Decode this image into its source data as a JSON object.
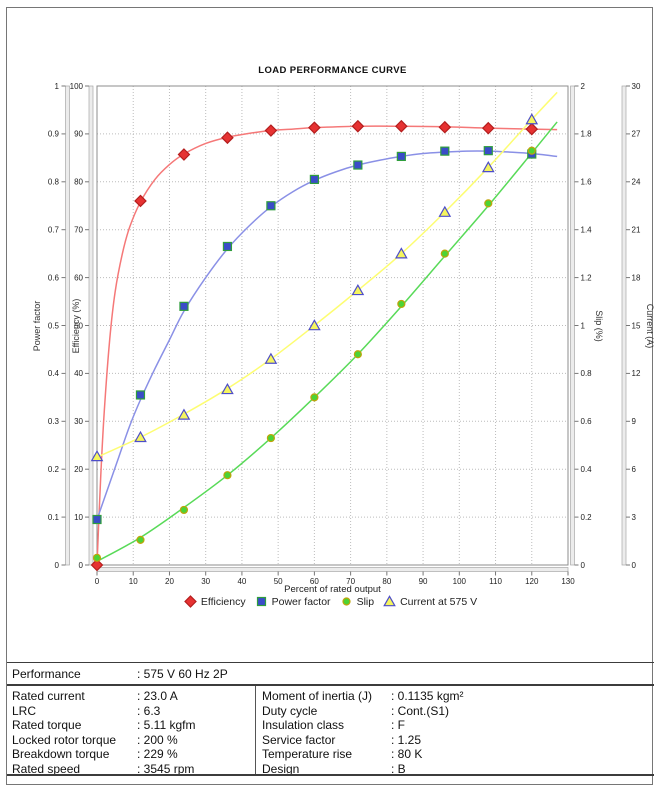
{
  "title": "LOAD PERFORMANCE CURVE",
  "chart_data": {
    "type": "line",
    "title": "LOAD PERFORMANCE CURVE",
    "xlabel": "Percent of rated output",
    "xlim": [
      0,
      130
    ],
    "x_tick_step": 10,
    "grid": "dotted",
    "legend_position": "bottom",
    "x": [
      0,
      12,
      24,
      36,
      48,
      60,
      72,
      84,
      96,
      108,
      120
    ],
    "axes": [
      {
        "id": "power_factor",
        "label": "Power factor",
        "side": "left",
        "min": 0,
        "max": 1,
        "step": 0.1
      },
      {
        "id": "efficiency",
        "label": "Efficiency (%)",
        "side": "left",
        "min": 0,
        "max": 100,
        "step": 10
      },
      {
        "id": "slip",
        "label": "Slip (%)",
        "side": "right",
        "min": 0,
        "max": 2,
        "step": 0.2
      },
      {
        "id": "current",
        "label": "Current (A)",
        "side": "right",
        "min": 0,
        "max": 30,
        "step": 3
      }
    ],
    "series": [
      {
        "name": "Efficiency",
        "axis": "efficiency",
        "marker": "diamond",
        "color": "#e63232",
        "edge_color": "#b41e1e",
        "line_color": "#f57878",
        "values": [
          0,
          76,
          85.7,
          89.2,
          90.7,
          91.3,
          91.6,
          91.6,
          91.4,
          91.2,
          91.0
        ],
        "curve": [
          [
            0,
            0
          ],
          [
            1,
            18
          ],
          [
            2,
            32
          ],
          [
            3.5,
            47
          ],
          [
            5,
            57
          ],
          [
            7,
            65
          ],
          [
            9,
            70.5
          ],
          [
            12,
            75.8
          ],
          [
            16,
            80.5
          ],
          [
            20,
            83.6
          ],
          [
            24,
            85.8
          ],
          [
            30,
            88
          ],
          [
            36,
            89.3
          ],
          [
            42,
            90.1
          ],
          [
            48,
            90.7
          ],
          [
            54,
            91.0
          ],
          [
            60,
            91.3
          ],
          [
            72,
            91.6
          ],
          [
            84,
            91.6
          ],
          [
            96,
            91.5
          ],
          [
            108,
            91.2
          ],
          [
            120,
            91.0
          ],
          [
            127,
            90.9
          ]
        ]
      },
      {
        "name": "Power factor",
        "axis": "power_factor",
        "marker": "square",
        "color": "#3a4cc8",
        "edge_color": "#2f9e3c",
        "line_color": "#8a90e6",
        "values": [
          0.095,
          0.355,
          0.54,
          0.665,
          0.75,
          0.805,
          0.835,
          0.853,
          0.864,
          0.865,
          0.858
        ],
        "curve": [
          [
            0,
            0.095
          ],
          [
            3,
            0.16
          ],
          [
            6,
            0.225
          ],
          [
            9,
            0.29
          ],
          [
            12,
            0.345
          ],
          [
            16,
            0.41
          ],
          [
            20,
            0.47
          ],
          [
            24,
            0.53
          ],
          [
            30,
            0.6
          ],
          [
            36,
            0.66
          ],
          [
            42,
            0.708
          ],
          [
            48,
            0.748
          ],
          [
            54,
            0.779
          ],
          [
            60,
            0.803
          ],
          [
            66,
            0.821
          ],
          [
            72,
            0.835
          ],
          [
            78,
            0.845
          ],
          [
            84,
            0.853
          ],
          [
            90,
            0.859
          ],
          [
            96,
            0.862
          ],
          [
            102,
            0.864
          ],
          [
            108,
            0.864
          ],
          [
            114,
            0.862
          ],
          [
            120,
            0.859
          ],
          [
            127,
            0.853
          ]
        ]
      },
      {
        "name": "Slip",
        "axis": "slip",
        "marker": "circle",
        "color": "#4cd335",
        "edge_color": "#bfa40a",
        "line_color": "#58da58",
        "values": [
          0.03,
          0.105,
          0.23,
          0.375,
          0.53,
          0.7,
          0.88,
          1.09,
          1.3,
          1.51,
          1.73
        ],
        "curve": [
          [
            0,
            0.015
          ],
          [
            12,
            0.115
          ],
          [
            24,
            0.24
          ],
          [
            36,
            0.375
          ],
          [
            48,
            0.53
          ],
          [
            60,
            0.7
          ],
          [
            72,
            0.88
          ],
          [
            84,
            1.08
          ],
          [
            96,
            1.29
          ],
          [
            108,
            1.5
          ],
          [
            120,
            1.72
          ],
          [
            127,
            1.85
          ]
        ]
      },
      {
        "name": "Current at 575 V",
        "axis": "current",
        "marker": "triangle",
        "color": "#f5f55e",
        "edge_color": "#4d4dc9",
        "line_color": "#fdfd72",
        "values": [
          6.8,
          8.0,
          9.4,
          11.0,
          12.9,
          15.0,
          17.2,
          19.5,
          22.1,
          24.9,
          27.9
        ],
        "curve": [
          [
            0,
            6.75
          ],
          [
            12,
            8.0
          ],
          [
            24,
            9.45
          ],
          [
            36,
            11.05
          ],
          [
            48,
            12.9
          ],
          [
            60,
            15.0
          ],
          [
            72,
            17.2
          ],
          [
            84,
            19.5
          ],
          [
            96,
            22.1
          ],
          [
            108,
            24.9
          ],
          [
            120,
            27.9
          ],
          [
            127,
            29.6
          ]
        ]
      }
    ]
  },
  "table": {
    "performance": {
      "label": "Performance",
      "value": ": 575 V 60 Hz 2P"
    },
    "left": [
      {
        "label": "Rated current",
        "value": ": 23.0 A"
      },
      {
        "label": "LRC",
        "value": ": 6.3"
      },
      {
        "label": "Rated torque",
        "value": ": 5.11 kgfm"
      },
      {
        "label": "Locked rotor torque",
        "value": ": 200 %"
      },
      {
        "label": "Breakdown torque",
        "value": ": 229 %"
      },
      {
        "label": "Rated speed",
        "value": ": 3545 rpm"
      }
    ],
    "right": [
      {
        "label": "Moment of inertia (J)",
        "value": ": 0.1135 kgm²"
      },
      {
        "label": "Duty cycle",
        "value": ": Cont.(S1)"
      },
      {
        "label": "Insulation class",
        "value": ": F"
      },
      {
        "label": "Service factor",
        "value": ": 1.25"
      },
      {
        "label": "Temperature rise",
        "value": ": 80 K"
      },
      {
        "label": "Design",
        "value": ": B"
      }
    ]
  }
}
